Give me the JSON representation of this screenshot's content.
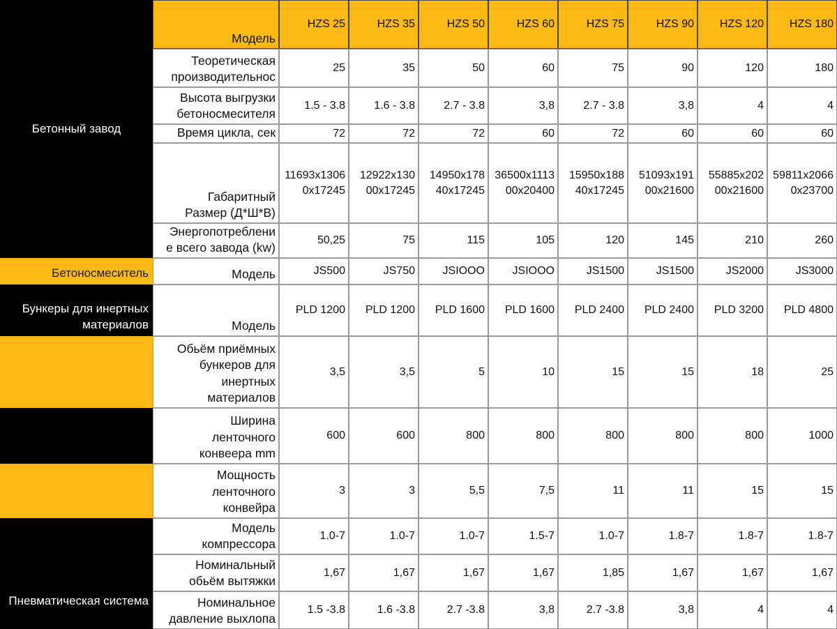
{
  "table": {
    "header": {
      "label": "Модель",
      "models": [
        "HZS 25",
        "HZS 35",
        "HZS 50",
        "HZS 60",
        "HZS 75",
        "HZS 90",
        "HZS 120",
        "HZS 180"
      ]
    },
    "sections": [
      {
        "title": "Бетонный завод",
        "rows": [
          {
            "label": [
              "Теоретическая",
              "производительнос"
            ],
            "values": [
              "25",
              "35",
              "50",
              "60",
              "75",
              "90",
              "120",
              "180"
            ]
          },
          {
            "label": [
              "Высота выгрузки",
              "бетоносмесителя"
            ],
            "values": [
              "1.5 - 3.8",
              "1.6 - 3.8",
              "2.7 - 3.8",
              "3,8",
              "2.7 - 3.8",
              "3,8",
              "4",
              "4"
            ]
          },
          {
            "label": [
              "Время цикла, сек"
            ],
            "values": [
              "72",
              "72",
              "72",
              "60",
              "72",
              "60",
              "60",
              "60"
            ]
          },
          {
            "label": [
              "Габаритный",
              "Размер (Д*Ш*В)"
            ],
            "values": [
              "11693x13060x17245",
              "12922x13000x17245",
              "14950x17840x17245",
              "36500x111300x20400",
              "15950x18840x17245",
              "51093x19100x21600",
              "55885x20200x21600",
              "59811x20660x23700"
            ]
          },
          {
            "label": [
              "Энергопотреблени",
              "е всего завода (kw)"
            ],
            "values": [
              "50,25",
              "75",
              "115",
              "105",
              "120",
              "145",
              "210",
              "260"
            ]
          }
        ]
      },
      {
        "title": "Бетоносмеситель",
        "rows": [
          {
            "label": [
              "Модель"
            ],
            "values": [
              "JS500",
              "JS750",
              "JSIOOO",
              "JSIOOO",
              "JS1500",
              "JS1500",
              "JS2000",
              "JS3000"
            ]
          }
        ]
      },
      {
        "title": "Бункеры для инертных материалов",
        "rows": [
          {
            "label": [
              "Модель"
            ],
            "values": [
              "PLD 1200",
              "PLD 1200",
              "PLD 1600",
              "PLD 1600",
              "PLD 2400",
              "PLD 2400",
              "PLD 3200",
              "PLD 4800"
            ]
          }
        ]
      },
      {
        "rows": [
          {
            "label": [
              "Обьём приёмных",
              "бункеров для",
              "инертных",
              "материалов"
            ],
            "values": [
              "3,5",
              "3,5",
              "5",
              "10",
              "15",
              "15",
              "18",
              "25"
            ]
          }
        ]
      },
      {
        "rows": [
          {
            "label": [
              "Ширина",
              "ленточного",
              "конвеера mm"
            ],
            "values": [
              "600",
              "600",
              "800",
              "800",
              "800",
              "800",
              "800",
              "1000"
            ]
          }
        ]
      },
      {
        "rows": [
          {
            "label": [
              "Мощность",
              "ленточного",
              "конвейра"
            ],
            "values": [
              "3",
              "3",
              "5,5",
              "7,5",
              "11",
              "11",
              "15",
              "15"
            ]
          }
        ]
      },
      {
        "title": "Пневматическая система",
        "rows": [
          {
            "label": [
              "Модель",
              "компрессора"
            ],
            "values": [
              "1.0-7",
              "1.0-7",
              "1.0-7",
              "1.5-7",
              "1.0-7",
              "1.8-7",
              "1.8-7",
              "1.8-7"
            ]
          },
          {
            "label": [
              "Номинальный",
              "обьём вытяжки"
            ],
            "values": [
              "1,67",
              "1,67",
              "1,67",
              "1,67",
              "1,85",
              "1,67",
              "1,67",
              "1,67"
            ]
          },
          {
            "label": [
              "Номинальное",
              "давление выхлопа"
            ],
            "values": [
              "1.5 -3.8",
              "1.6 -3.8",
              "2.7 -3.8",
              "3,8",
              "2.7 -3.8",
              "3,8",
              "4",
              "4"
            ]
          }
        ]
      }
    ]
  }
}
